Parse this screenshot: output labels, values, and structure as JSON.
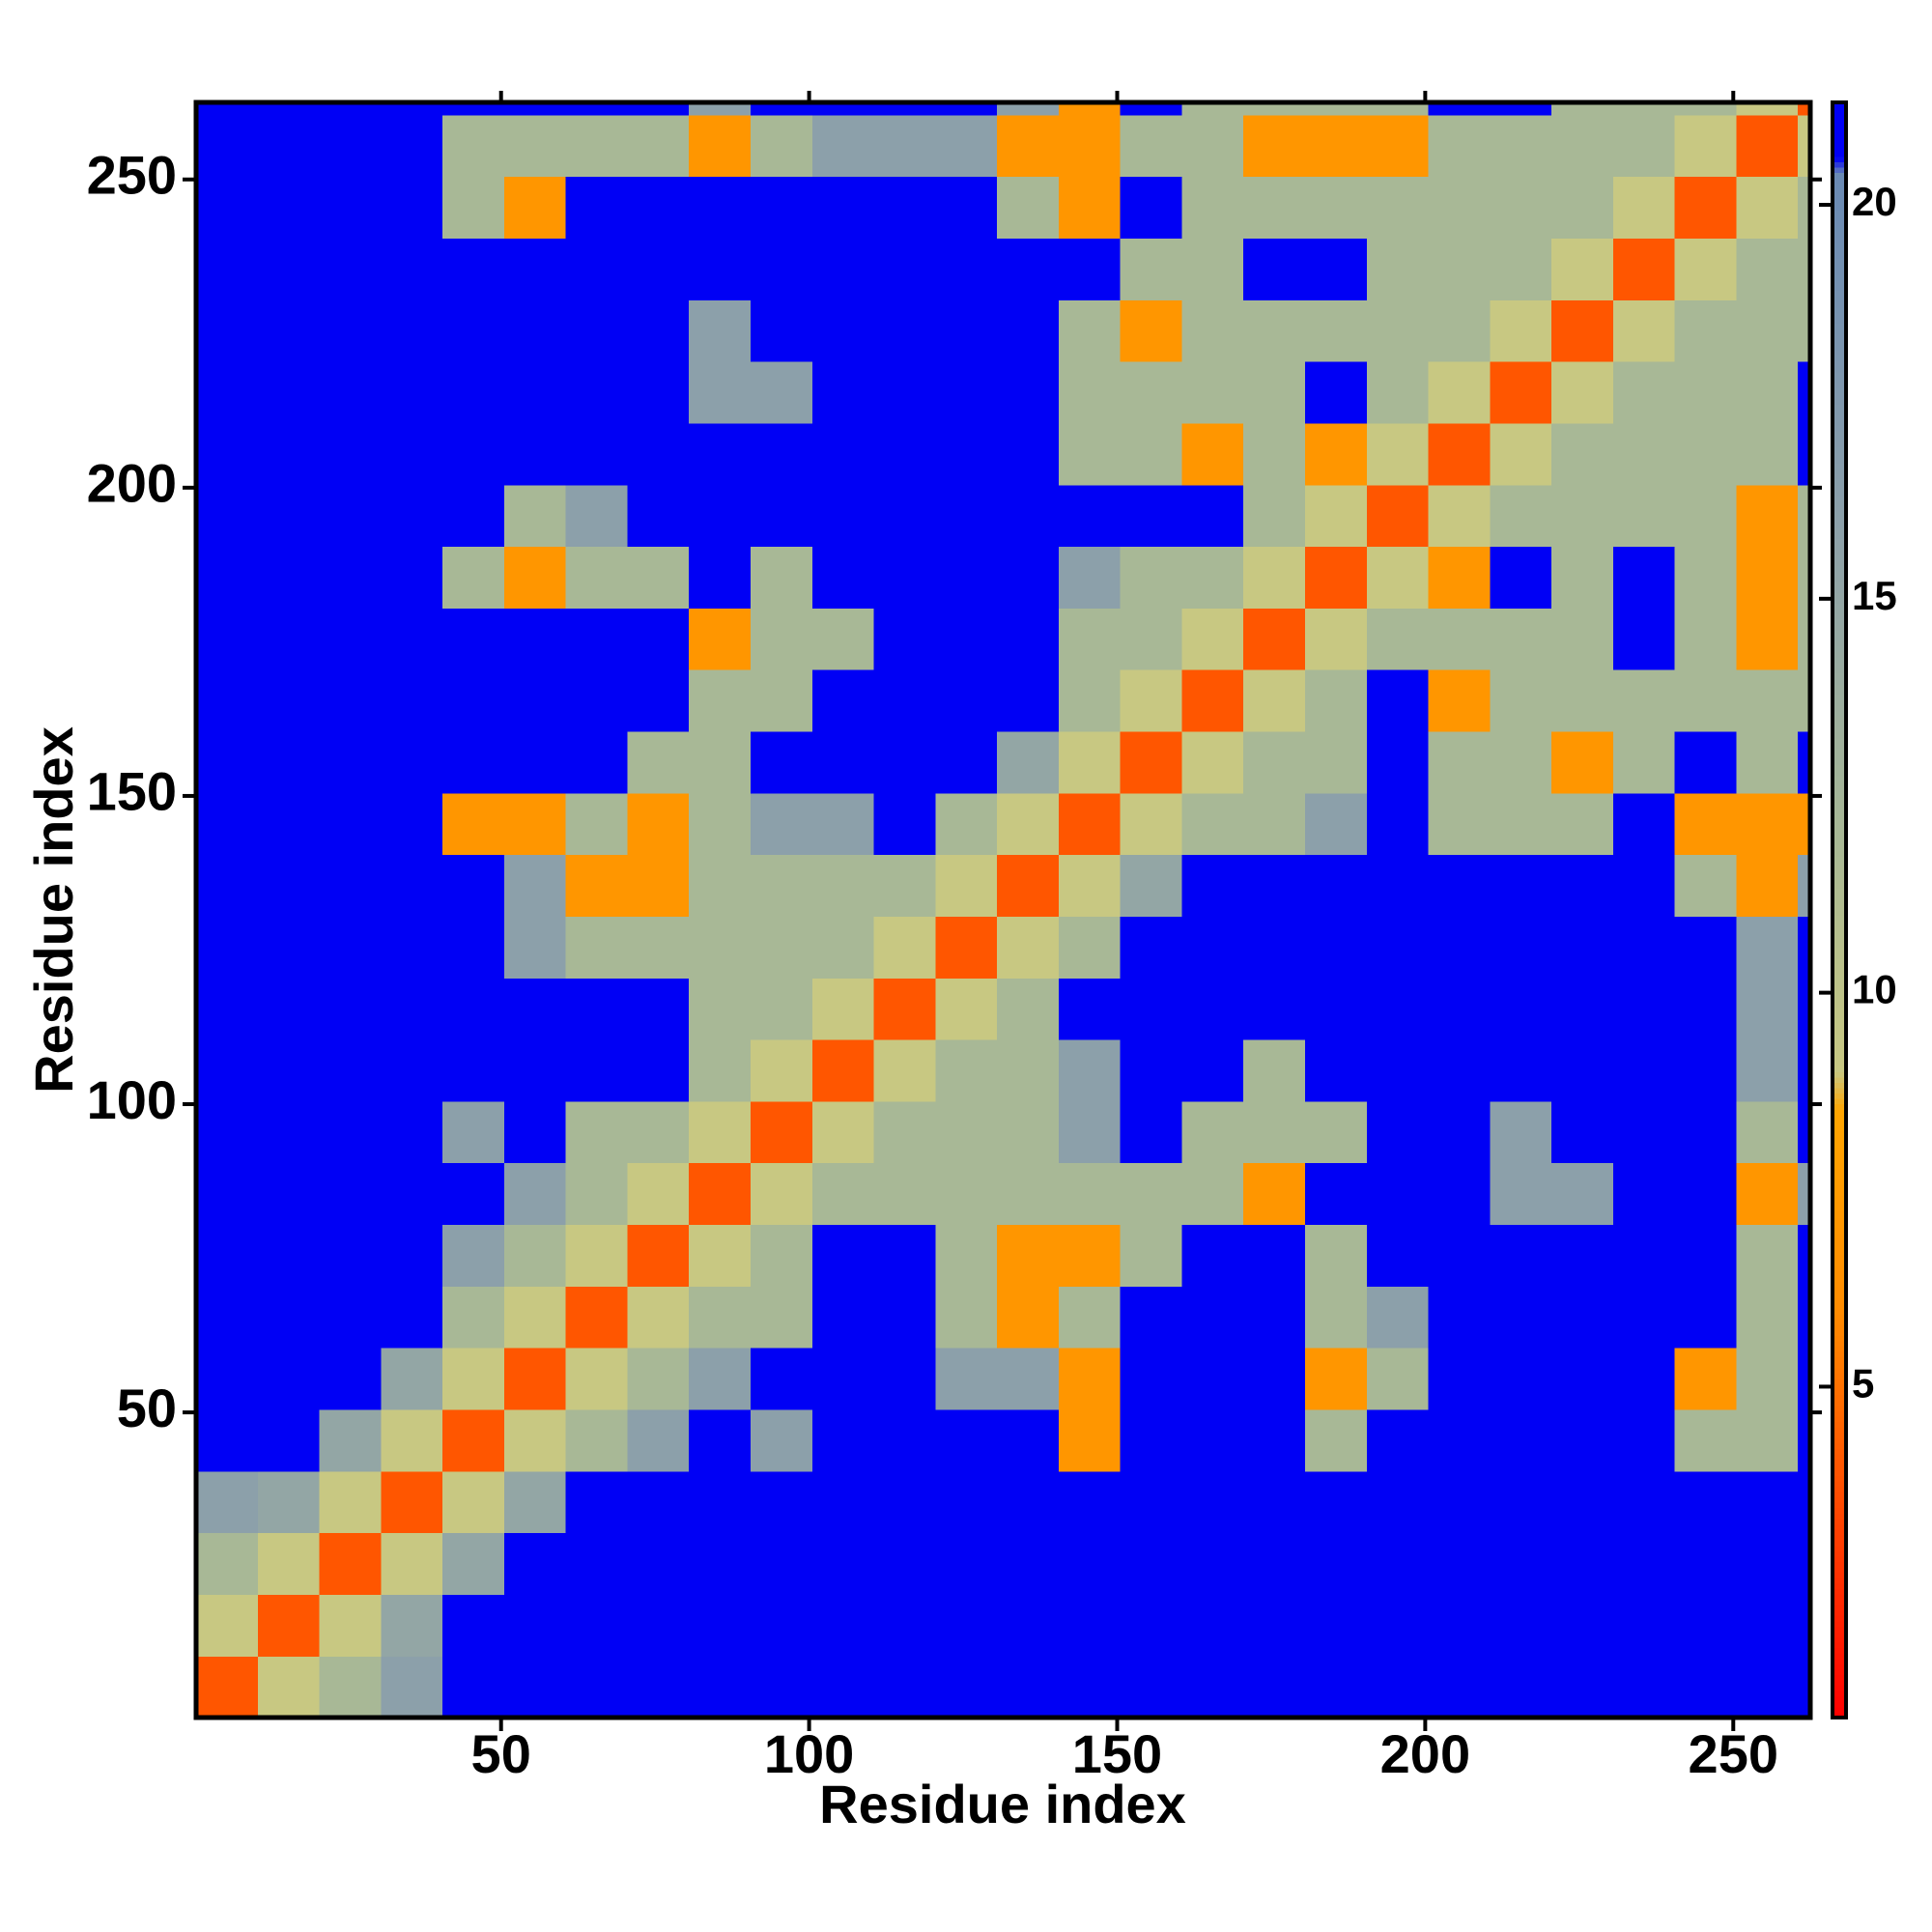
{
  "chart_data": {
    "type": "heatmap",
    "xlabel": "Residue index",
    "ylabel": "Residue index",
    "xlim": [
      0.5,
      262.5
    ],
    "ylim": [
      0.5,
      262.5
    ],
    "xticks": [
      50,
      100,
      150,
      200,
      250
    ],
    "yticks": [
      50,
      100,
      150,
      200,
      250
    ],
    "xbins": [
      0.5,
      10.5,
      20.5,
      30.5,
      40.5,
      50.5,
      60.5,
      70.5,
      80.5,
      90.5,
      100.5,
      110.5,
      120.5,
      130.5,
      140.5,
      150.5,
      160.5,
      170.5,
      180.5,
      190.5,
      200.5,
      210.5,
      220.5,
      230.5,
      240.5,
      250.5,
      260.5,
      262.5
    ],
    "ybins": [
      0.5,
      10.5,
      20.5,
      30.5,
      40.5,
      50.5,
      60.5,
      70.5,
      80.5,
      90.5,
      100.5,
      110.5,
      120.5,
      130.5,
      140.5,
      150.5,
      160.5,
      170.5,
      180.5,
      190.5,
      200.5,
      210.5,
      220.5,
      230.5,
      240.5,
      250.5,
      260.5,
      262.5
    ],
    "z": [
      [
        4,
        9,
        12,
        16,
        21,
        21,
        21,
        21,
        21,
        21,
        21,
        21,
        21,
        21,
        21,
        21,
        21,
        21,
        21,
        21,
        21,
        21,
        21,
        21,
        21,
        21,
        21
      ],
      [
        9,
        4,
        9,
        15,
        21,
        21,
        21,
        21,
        21,
        21,
        21,
        21,
        21,
        21,
        21,
        21,
        21,
        21,
        21,
        21,
        21,
        21,
        21,
        21,
        21,
        21,
        21
      ],
      [
        12,
        9,
        4,
        9,
        15,
        21,
        21,
        21,
        21,
        21,
        21,
        21,
        21,
        21,
        21,
        21,
        21,
        21,
        21,
        21,
        21,
        21,
        21,
        21,
        21,
        21,
        21
      ],
      [
        16,
        15,
        9,
        4,
        9,
        15,
        21,
        21,
        21,
        21,
        21,
        21,
        21,
        21,
        21,
        21,
        21,
        21,
        21,
        21,
        21,
        21,
        21,
        21,
        21,
        21,
        21
      ],
      [
        21,
        21,
        15,
        9,
        4,
        9,
        12,
        16,
        21,
        16,
        21,
        21,
        21,
        21,
        7,
        21,
        21,
        21,
        12,
        21,
        21,
        21,
        21,
        21,
        12,
        12,
        21
      ],
      [
        21,
        21,
        21,
        15,
        9,
        4,
        9,
        12,
        16,
        21,
        21,
        21,
        16,
        16,
        7,
        21,
        21,
        21,
        7,
        12,
        21,
        21,
        21,
        21,
        7,
        12,
        21
      ],
      [
        21,
        21,
        21,
        21,
        12,
        9,
        4,
        9,
        12,
        12,
        21,
        21,
        12,
        7,
        12,
        21,
        21,
        21,
        12,
        16,
        21,
        21,
        21,
        21,
        21,
        12,
        21
      ],
      [
        21,
        21,
        21,
        21,
        16,
        12,
        9,
        4,
        9,
        12,
        21,
        21,
        12,
        7,
        7,
        12,
        21,
        21,
        12,
        21,
        21,
        21,
        21,
        21,
        21,
        12,
        21
      ],
      [
        21,
        21,
        21,
        21,
        21,
        16,
        12,
        9,
        4,
        9,
        12,
        12,
        12,
        12,
        12,
        12,
        12,
        7,
        21,
        21,
        21,
        16,
        16,
        21,
        21,
        7,
        16
      ],
      [
        21,
        21,
        21,
        21,
        16,
        21,
        12,
        12,
        9,
        4,
        9,
        12,
        12,
        12,
        16,
        21,
        12,
        12,
        12,
        21,
        21,
        16,
        21,
        21,
        21,
        12,
        21
      ],
      [
        21,
        21,
        21,
        21,
        21,
        21,
        21,
        21,
        12,
        9,
        4,
        9,
        12,
        12,
        16,
        21,
        21,
        12,
        21,
        21,
        21,
        21,
        21,
        21,
        21,
        16,
        21
      ],
      [
        21,
        21,
        21,
        21,
        21,
        21,
        21,
        21,
        12,
        12,
        9,
        4,
        9,
        12,
        21,
        21,
        21,
        21,
        21,
        21,
        21,
        21,
        21,
        21,
        21,
        16,
        21
      ],
      [
        21,
        21,
        21,
        21,
        21,
        16,
        12,
        12,
        12,
        12,
        12,
        9,
        4,
        9,
        12,
        21,
        21,
        21,
        21,
        21,
        21,
        21,
        21,
        21,
        21,
        16,
        21
      ],
      [
        21,
        21,
        21,
        21,
        21,
        16,
        7,
        7,
        12,
        12,
        12,
        12,
        9,
        4,
        9,
        15,
        21,
        21,
        21,
        21,
        21,
        21,
        21,
        21,
        12,
        7,
        16
      ],
      [
        21,
        21,
        21,
        21,
        7,
        7,
        12,
        7,
        12,
        16,
        16,
        21,
        12,
        9,
        4,
        9,
        12,
        12,
        16,
        21,
        12,
        12,
        12,
        21,
        7,
        7,
        7
      ],
      [
        21,
        21,
        21,
        21,
        21,
        21,
        21,
        12,
        12,
        21,
        21,
        21,
        21,
        15,
        9,
        4,
        9,
        12,
        12,
        21,
        12,
        12,
        7,
        12,
        21,
        12,
        21
      ],
      [
        21,
        21,
        21,
        21,
        21,
        21,
        21,
        21,
        12,
        12,
        21,
        21,
        21,
        21,
        12,
        9,
        4,
        9,
        12,
        21,
        7,
        12,
        12,
        12,
        12,
        12,
        12
      ],
      [
        21,
        21,
        21,
        21,
        21,
        21,
        21,
        21,
        7,
        12,
        12,
        21,
        21,
        21,
        12,
        12,
        9,
        4,
        9,
        12,
        12,
        12,
        12,
        21,
        12,
        7,
        12
      ],
      [
        21,
        21,
        21,
        21,
        12,
        7,
        12,
        12,
        21,
        12,
        21,
        21,
        21,
        21,
        16,
        12,
        12,
        9,
        4,
        9,
        7,
        21,
        12,
        21,
        12,
        7,
        12
      ],
      [
        21,
        21,
        21,
        21,
        21,
        12,
        16,
        21,
        21,
        21,
        21,
        21,
        21,
        21,
        21,
        21,
        21,
        12,
        9,
        4,
        9,
        12,
        12,
        12,
        12,
        7,
        12
      ],
      [
        21,
        21,
        21,
        21,
        21,
        21,
        21,
        21,
        21,
        21,
        21,
        21,
        21,
        21,
        12,
        12,
        7,
        12,
        7,
        9,
        4,
        9,
        12,
        12,
        12,
        12,
        21
      ],
      [
        21,
        21,
        21,
        21,
        21,
        21,
        21,
        21,
        16,
        16,
        21,
        21,
        21,
        21,
        12,
        12,
        12,
        12,
        21,
        12,
        9,
        4,
        9,
        12,
        12,
        12,
        21
      ],
      [
        21,
        21,
        21,
        21,
        21,
        21,
        21,
        21,
        16,
        21,
        21,
        21,
        21,
        21,
        12,
        7,
        12,
        12,
        12,
        12,
        12,
        9,
        4,
        9,
        12,
        12,
        12
      ],
      [
        21,
        21,
        21,
        21,
        21,
        21,
        21,
        21,
        21,
        21,
        21,
        21,
        21,
        21,
        21,
        12,
        12,
        21,
        21,
        12,
        12,
        12,
        9,
        4,
        9,
        12,
        12
      ],
      [
        21,
        21,
        21,
        21,
        12,
        7,
        21,
        21,
        21,
        21,
        21,
        21,
        21,
        12,
        7,
        21,
        12,
        12,
        12,
        12,
        12,
        12,
        12,
        9,
        4,
        9,
        12
      ],
      [
        21,
        21,
        21,
        21,
        12,
        12,
        12,
        12,
        7,
        12,
        16,
        16,
        16,
        7,
        7,
        12,
        12,
        7,
        7,
        7,
        12,
        12,
        12,
        12,
        9,
        4,
        9
      ],
      [
        21,
        21,
        21,
        21,
        21,
        21,
        21,
        21,
        16,
        21,
        21,
        21,
        21,
        16,
        7,
        21,
        12,
        12,
        12,
        12,
        21,
        21,
        12,
        12,
        12,
        9,
        4
      ]
    ],
    "colorscale": [
      [
        0.8,
        "#ff0000"
      ],
      [
        6,
        "#ff8c00"
      ],
      [
        8.5,
        "#ffa500"
      ],
      [
        9,
        "#c8c882"
      ],
      [
        12,
        "#a8b896"
      ],
      [
        16,
        "#8ca0aa"
      ],
      [
        20.4,
        "#6a8ab4"
      ],
      [
        20.6,
        "#0000f5"
      ],
      [
        21.3,
        "#0000f5"
      ]
    ],
    "colorbar": {
      "lim": [
        0.8,
        21.3
      ],
      "ticks": [
        5,
        10,
        15,
        20
      ]
    }
  }
}
